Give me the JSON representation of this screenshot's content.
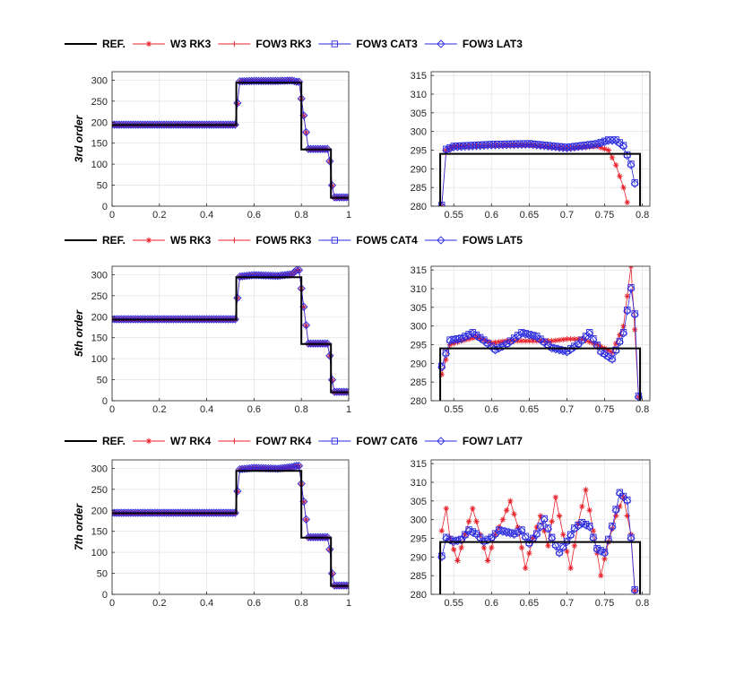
{
  "colors": {
    "ref": "#000000",
    "red": "#e8202a",
    "blue": "#2a2ae0",
    "grid": "#e6e6e6",
    "axis": "#262626"
  },
  "rows": [
    {
      "ylabel": "3rd order",
      "legend": [
        {
          "label": "REF.",
          "marker": "none",
          "color": "ref"
        },
        {
          "label": "W3 RK3",
          "marker": "asterisk",
          "color": "red"
        },
        {
          "label": "FOW3 RK3",
          "marker": "plus",
          "color": "red"
        },
        {
          "label": "FOW3 CAT3",
          "marker": "square",
          "color": "blue"
        },
        {
          "label": "FOW3 LAT3",
          "marker": "diamond",
          "color": "blue"
        }
      ]
    },
    {
      "ylabel": "5th order",
      "legend": [
        {
          "label": "REF.",
          "marker": "none",
          "color": "ref"
        },
        {
          "label": "W5 RK3",
          "marker": "asterisk",
          "color": "red"
        },
        {
          "label": "FOW5 RK3",
          "marker": "plus",
          "color": "red"
        },
        {
          "label": "FOW5 CAT4",
          "marker": "square",
          "color": "blue"
        },
        {
          "label": "FOW5 LAT5",
          "marker": "diamond",
          "color": "blue"
        }
      ]
    },
    {
      "ylabel": "7th order",
      "legend": [
        {
          "label": "REF.",
          "marker": "none",
          "color": "ref"
        },
        {
          "label": "W7 RK4",
          "marker": "asterisk",
          "color": "red"
        },
        {
          "label": "FOW7 RK4",
          "marker": "plus",
          "color": "red"
        },
        {
          "label": "FOW7 CAT6",
          "marker": "square",
          "color": "blue"
        },
        {
          "label": "FOW7 LAT7",
          "marker": "diamond",
          "color": "blue"
        }
      ]
    }
  ],
  "chart_data": [
    {
      "type": "line",
      "panel": "full",
      "row": 0,
      "xlim": [
        0,
        1
      ],
      "ylim": [
        0,
        320
      ],
      "xticks": [
        "0",
        "0.2",
        "0.4",
        "0.6",
        "0.8",
        "1"
      ],
      "yticks": [
        "0",
        "50",
        "100",
        "150",
        "200",
        "250",
        "300"
      ],
      "grid": true,
      "reference": {
        "x": [
          0,
          0.525,
          0.525,
          0.8,
          0.8,
          0.925,
          0.925,
          1
        ],
        "y": [
          193,
          193,
          294,
          294,
          135,
          135,
          20,
          20
        ]
      },
      "numerical_plateau": [
        [
          0.53,
          296
        ],
        [
          0.6,
          297
        ],
        [
          0.7,
          297
        ],
        [
          0.76,
          298
        ],
        [
          0.78,
          295
        ]
      ]
    },
    {
      "type": "line",
      "panel": "zoom",
      "row": 0,
      "xlim": [
        0.52,
        0.81
      ],
      "ylim": [
        280,
        316
      ],
      "xticks": [
        "0.55",
        "0.6",
        "0.65",
        "0.7",
        "0.75",
        "0.8"
      ],
      "yticks": [
        "280",
        "285",
        "290",
        "295",
        "300",
        "305",
        "310",
        "315"
      ],
      "grid": true,
      "reference": {
        "x": [
          0.532,
          0.532,
          0.797,
          0.797
        ],
        "y": [
          280,
          294,
          294,
          280
        ]
      },
      "series": [
        {
          "name": "W3 RK3",
          "x": [
            0.534,
            0.54,
            0.55,
            0.6,
            0.65,
            0.7,
            0.74,
            0.755,
            0.765,
            0.775,
            0.78
          ],
          "y": [
            280,
            295,
            296,
            296.2,
            296.3,
            295.5,
            296,
            295,
            291,
            285,
            281
          ]
        },
        {
          "name": "FOW3 CAT3",
          "x": [
            0.534,
            0.54,
            0.55,
            0.6,
            0.65,
            0.7,
            0.74,
            0.755,
            0.765,
            0.775,
            0.785,
            0.79
          ],
          "y": [
            280,
            295,
            295.8,
            296.3,
            296.5,
            295.5,
            296.5,
            297.5,
            297.5,
            296,
            291,
            286
          ]
        }
      ]
    },
    {
      "type": "line",
      "panel": "full",
      "row": 1,
      "xlim": [
        0,
        1
      ],
      "ylim": [
        0,
        320
      ],
      "xticks": [
        "0",
        "0.2",
        "0.4",
        "0.6",
        "0.8",
        "1"
      ],
      "yticks": [
        "0",
        "50",
        "100",
        "150",
        "200",
        "250",
        "300"
      ],
      "grid": true,
      "reference": {
        "x": [
          0,
          0.525,
          0.525,
          0.8,
          0.8,
          0.925,
          0.925,
          1
        ],
        "y": [
          193,
          193,
          294,
          294,
          135,
          135,
          20,
          20
        ]
      },
      "numerical_plateau": [
        [
          0.53,
          294
        ],
        [
          0.6,
          298
        ],
        [
          0.7,
          296
        ],
        [
          0.76,
          300
        ],
        [
          0.78,
          310
        ]
      ]
    },
    {
      "type": "line",
      "panel": "zoom",
      "row": 1,
      "xlim": [
        0.52,
        0.81
      ],
      "ylim": [
        280,
        316
      ],
      "xticks": [
        "0.55",
        "0.6",
        "0.65",
        "0.7",
        "0.75",
        "0.8"
      ],
      "yticks": [
        "280",
        "285",
        "290",
        "295",
        "300",
        "305",
        "310",
        "315"
      ],
      "grid": true,
      "reference": {
        "x": [
          0.532,
          0.532,
          0.797,
          0.797
        ],
        "y": [
          280,
          294,
          294,
          280
        ]
      },
      "series": [
        {
          "name": "W5 RK3",
          "x": [
            0.534,
            0.545,
            0.56,
            0.58,
            0.6,
            0.62,
            0.65,
            0.68,
            0.7,
            0.72,
            0.74,
            0.76,
            0.775,
            0.785,
            0.79,
            0.795
          ],
          "y": [
            287,
            295,
            296,
            297,
            295.5,
            296,
            296,
            296,
            296.5,
            296.5,
            295,
            293,
            300,
            316,
            299,
            281
          ]
        },
        {
          "name": "FOW5 CAT4",
          "x": [
            0.534,
            0.545,
            0.56,
            0.575,
            0.59,
            0.605,
            0.62,
            0.64,
            0.66,
            0.68,
            0.7,
            0.715,
            0.73,
            0.745,
            0.76,
            0.775,
            0.785,
            0.79,
            0.795
          ],
          "y": [
            289,
            296,
            296.5,
            298,
            296,
            293.5,
            295,
            298,
            297,
            294,
            293,
            295,
            298,
            293,
            291,
            298,
            310,
            303,
            281
          ]
        }
      ]
    },
    {
      "type": "line",
      "panel": "full",
      "row": 2,
      "xlim": [
        0,
        1
      ],
      "ylim": [
        0,
        320
      ],
      "xticks": [
        "0",
        "0.2",
        "0.4",
        "0.6",
        "0.8",
        "1"
      ],
      "yticks": [
        "0",
        "50",
        "100",
        "150",
        "200",
        "250",
        "300"
      ],
      "grid": true,
      "reference": {
        "x": [
          0,
          0.525,
          0.525,
          0.8,
          0.8,
          0.925,
          0.925,
          1
        ],
        "y": [
          193,
          193,
          294,
          294,
          135,
          135,
          20,
          20
        ]
      },
      "numerical_plateau": [
        [
          0.53,
          296
        ],
        [
          0.6,
          300
        ],
        [
          0.7,
          298
        ],
        [
          0.76,
          302
        ],
        [
          0.78,
          305
        ]
      ]
    },
    {
      "type": "line",
      "panel": "zoom",
      "row": 2,
      "xlim": [
        0.52,
        0.81
      ],
      "ylim": [
        280,
        316
      ],
      "xticks": [
        "0.55",
        "0.6",
        "0.65",
        "0.7",
        "0.75",
        "0.8"
      ],
      "yticks": [
        "280",
        "285",
        "290",
        "295",
        "300",
        "305",
        "310",
        "315"
      ],
      "grid": true,
      "reference": {
        "x": [
          0.532,
          0.532,
          0.797,
          0.797
        ],
        "y": [
          280,
          294,
          294,
          280
        ]
      },
      "series": [
        {
          "name": "W7 RK4",
          "x": [
            0.534,
            0.54,
            0.545,
            0.555,
            0.565,
            0.575,
            0.585,
            0.595,
            0.605,
            0.615,
            0.625,
            0.635,
            0.645,
            0.655,
            0.665,
            0.675,
            0.685,
            0.695,
            0.705,
            0.715,
            0.725,
            0.735,
            0.745,
            0.755,
            0.765,
            0.775,
            0.785,
            0.79
          ],
          "y": [
            297,
            303,
            295,
            289,
            296,
            303,
            296,
            289,
            296,
            300,
            305,
            298,
            287,
            295,
            301,
            293,
            306,
            296,
            287,
            299,
            308,
            297,
            285,
            294,
            301,
            306,
            296,
            281
          ]
        },
        {
          "name": "FOW7 CAT6",
          "x": [
            0.534,
            0.54,
            0.55,
            0.56,
            0.57,
            0.58,
            0.59,
            0.6,
            0.61,
            0.62,
            0.63,
            0.64,
            0.65,
            0.66,
            0.67,
            0.68,
            0.69,
            0.7,
            0.71,
            0.72,
            0.73,
            0.74,
            0.75,
            0.76,
            0.77,
            0.78,
            0.785,
            0.79
          ],
          "y": [
            290,
            295,
            294,
            294.5,
            297,
            296,
            294,
            295,
            297,
            296.5,
            296,
            297,
            293.5,
            296,
            300,
            295,
            291,
            294,
            297.5,
            299,
            298,
            292,
            291,
            298,
            307,
            305,
            295,
            281
          ]
        }
      ]
    }
  ]
}
